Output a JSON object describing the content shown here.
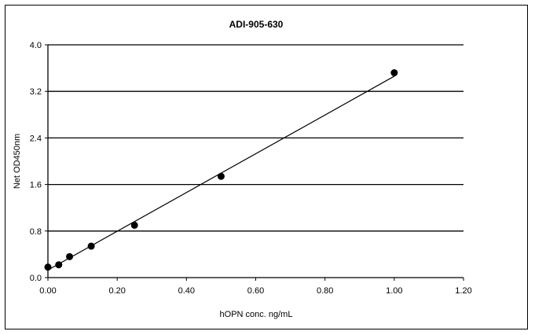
{
  "chart_data": {
    "type": "scatter",
    "title": "ADI-905-630",
    "xlabel": "hOPN conc. ng/mL",
    "ylabel": "Net OD450nm",
    "xlim": [
      0,
      1.2
    ],
    "ylim": [
      0,
      4.0
    ],
    "x_ticks": [
      "0.00",
      "0.20",
      "0.40",
      "0.60",
      "0.80",
      "1.00",
      "1.20"
    ],
    "y_ticks": [
      "0.0",
      "0.8",
      "1.6",
      "2.4",
      "3.2",
      "4.0"
    ],
    "grid": "horizontal",
    "legend": "none",
    "points": [
      {
        "x": 0.0,
        "y": 0.18
      },
      {
        "x": 0.03125,
        "y": 0.22
      },
      {
        "x": 0.0625,
        "y": 0.36
      },
      {
        "x": 0.125,
        "y": 0.54
      },
      {
        "x": 0.25,
        "y": 0.9
      },
      {
        "x": 0.5,
        "y": 1.74
      },
      {
        "x": 1.0,
        "y": 3.52
      }
    ],
    "trendline": {
      "x": [
        0.0,
        1.0
      ],
      "y": [
        0.13,
        3.46
      ]
    },
    "colors": {
      "points": "#000000",
      "line": "#000000",
      "grid": "#000000"
    }
  }
}
